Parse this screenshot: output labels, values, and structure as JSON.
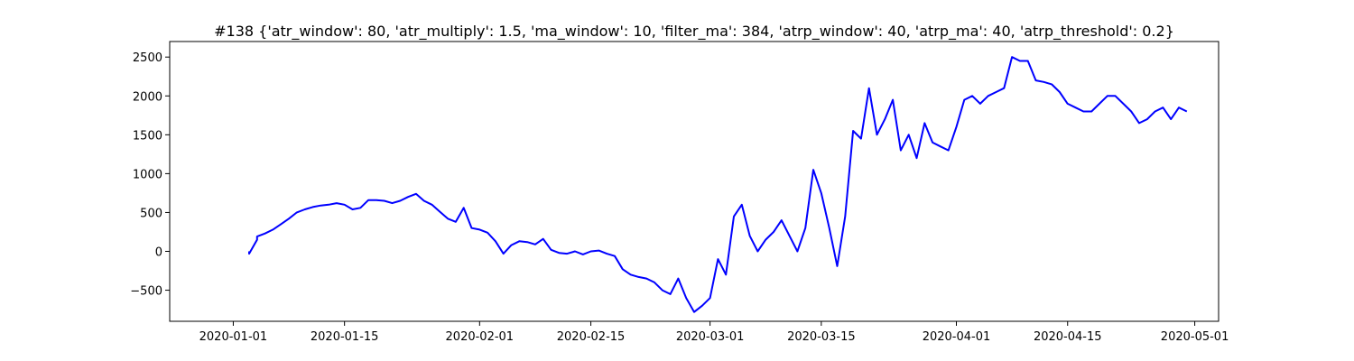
{
  "chart_data": {
    "type": "line",
    "title": "#138 {'atr_window': 80, 'atr_multiply': 1.5, 'ma_window': 10, 'filter_ma': 384, 'atrp_window': 40, 'atrp_ma': 40, 'atrp_threshold': 0.2}",
    "xlabel": "",
    "ylabel": "",
    "x_range": [
      "2019-12-24",
      "2020-05-04"
    ],
    "ylim": [
      -900,
      2700
    ],
    "xticks": [
      "2020-01-01",
      "2020-01-15",
      "2020-02-01",
      "2020-02-15",
      "2020-03-01",
      "2020-03-15",
      "2020-04-01",
      "2020-04-15",
      "2020-05-01"
    ],
    "yticks": [
      -500,
      0,
      500,
      1000,
      1500,
      2000,
      2500
    ],
    "grid": false,
    "series": [
      {
        "color": "#0000ff",
        "x": [
          "2020-01-03",
          "2020-01-03",
          "2020-01-04",
          "2020-01-04",
          "2020-01-05",
          "2020-01-06",
          "2020-01-07",
          "2020-01-08",
          "2020-01-09",
          "2020-01-10",
          "2020-01-11",
          "2020-01-12",
          "2020-01-13",
          "2020-01-14",
          "2020-01-15",
          "2020-01-16",
          "2020-01-17",
          "2020-01-18",
          "2020-01-19",
          "2020-01-20",
          "2020-01-21",
          "2020-01-22",
          "2020-01-23",
          "2020-01-24",
          "2020-01-25",
          "2020-01-26",
          "2020-01-27",
          "2020-01-28",
          "2020-01-29",
          "2020-01-30",
          "2020-01-31",
          "2020-02-01",
          "2020-02-02",
          "2020-02-03",
          "2020-02-04",
          "2020-02-05",
          "2020-02-06",
          "2020-02-07",
          "2020-02-08",
          "2020-02-09",
          "2020-02-10",
          "2020-02-11",
          "2020-02-12",
          "2020-02-13",
          "2020-02-14",
          "2020-02-15",
          "2020-02-16",
          "2020-02-17",
          "2020-02-18",
          "2020-02-19",
          "2020-02-20",
          "2020-02-21",
          "2020-02-22",
          "2020-02-23",
          "2020-02-24",
          "2020-02-25",
          "2020-02-26",
          "2020-02-27",
          "2020-02-28",
          "2020-02-29",
          "2020-03-01",
          "2020-03-02",
          "2020-03-03",
          "2020-03-04",
          "2020-03-05",
          "2020-03-06",
          "2020-03-07",
          "2020-03-08",
          "2020-03-09",
          "2020-03-10",
          "2020-03-11",
          "2020-03-12",
          "2020-03-13",
          "2020-03-14",
          "2020-03-15",
          "2020-03-16",
          "2020-03-17",
          "2020-03-18",
          "2020-03-19",
          "2020-03-20",
          "2020-03-21",
          "2020-03-22",
          "2020-03-23",
          "2020-03-24",
          "2020-03-25",
          "2020-03-26",
          "2020-03-27",
          "2020-03-28",
          "2020-03-29",
          "2020-03-30",
          "2020-03-31",
          "2020-04-01",
          "2020-04-02",
          "2020-04-03",
          "2020-04-04",
          "2020-04-05",
          "2020-04-06",
          "2020-04-07",
          "2020-04-08",
          "2020-04-09",
          "2020-04-10",
          "2020-04-11",
          "2020-04-12",
          "2020-04-13",
          "2020-04-14",
          "2020-04-15",
          "2020-04-16",
          "2020-04-17",
          "2020-04-18",
          "2020-04-19",
          "2020-04-20",
          "2020-04-21",
          "2020-04-22",
          "2020-04-23",
          "2020-04-24",
          "2020-04-25",
          "2020-04-26",
          "2020-04-27",
          "2020-04-28",
          "2020-04-29",
          "2020-04-30"
        ],
        "y": [
          0,
          -30,
          150,
          190,
          230,
          280,
          350,
          420,
          500,
          540,
          570,
          590,
          600,
          620,
          600,
          540,
          560,
          660,
          660,
          650,
          620,
          650,
          700,
          740,
          650,
          600,
          510,
          420,
          380,
          560,
          300,
          280,
          240,
          130,
          -30,
          80,
          130,
          120,
          90,
          160,
          20,
          -20,
          -30,
          0,
          -40,
          0,
          10,
          -30,
          -60,
          -230,
          -300,
          -330,
          -350,
          -400,
          -500,
          -550,
          -350,
          -600,
          -780,
          -700,
          -600,
          -100,
          -300,
          450,
          600,
          200,
          0,
          150,
          250,
          400,
          200,
          0,
          300,
          1050,
          750,
          300,
          -190,
          450,
          1550,
          1450,
          2100,
          1500,
          1700,
          1950,
          1300,
          1500,
          1200,
          1650,
          1400,
          1350,
          1300,
          1600,
          1950,
          2000,
          1900,
          2000,
          2050,
          2100,
          2500,
          2450,
          2450,
          2200,
          2180,
          2150,
          2050,
          1900,
          1850,
          1800,
          1800,
          1900,
          2000,
          2000,
          1900,
          1800,
          1650,
          1700,
          1800,
          1850,
          1700,
          1850,
          1800
        ]
      }
    ]
  }
}
